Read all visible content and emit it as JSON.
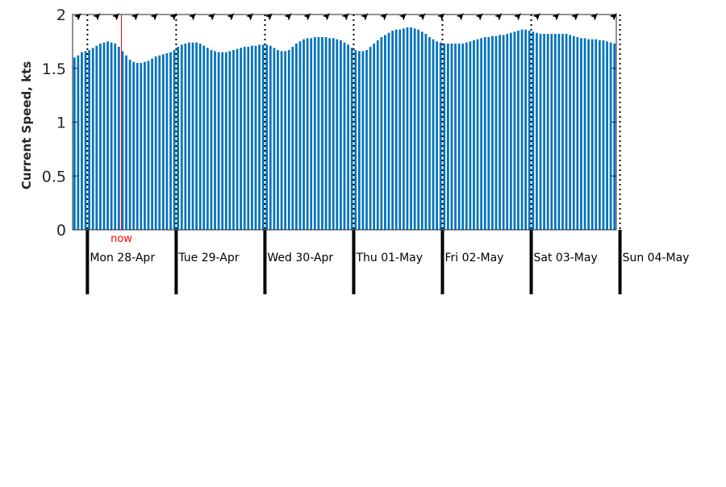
{
  "chart_data": {
    "type": "bar",
    "ylabel": "Current Speed, kts",
    "ylim": [
      0,
      2
    ],
    "yticks": [
      0,
      0.5,
      1,
      1.5,
      2
    ],
    "bar_color": "#0072bd",
    "now_color": "#ff0000",
    "now_label": "now",
    "x_start": "2025-04-27T20:00",
    "x_step_hours": 1,
    "day_labels": [
      "Mon 28-Apr",
      "Tue 29-Apr",
      "Wed 30-Apr",
      "Thu 01-May",
      "Fri 02-May",
      "Sat 03-May",
      "Sun 04-May"
    ],
    "values": [
      1.6,
      1.62,
      1.65,
      1.66,
      1.67,
      1.69,
      1.71,
      1.73,
      1.74,
      1.75,
      1.74,
      1.73,
      1.7,
      1.66,
      1.62,
      1.58,
      1.56,
      1.55,
      1.55,
      1.56,
      1.57,
      1.59,
      1.61,
      1.62,
      1.63,
      1.64,
      1.65,
      1.67,
      1.7,
      1.72,
      1.73,
      1.74,
      1.74,
      1.74,
      1.73,
      1.71,
      1.69,
      1.67,
      1.66,
      1.65,
      1.65,
      1.65,
      1.66,
      1.67,
      1.68,
      1.69,
      1.7,
      1.7,
      1.71,
      1.71,
      1.72,
      1.72,
      1.72,
      1.71,
      1.69,
      1.67,
      1.66,
      1.66,
      1.67,
      1.7,
      1.73,
      1.75,
      1.77,
      1.78,
      1.78,
      1.79,
      1.79,
      1.79,
      1.79,
      1.78,
      1.78,
      1.77,
      1.76,
      1.74,
      1.72,
      1.69,
      1.67,
      1.66,
      1.66,
      1.67,
      1.7,
      1.73,
      1.76,
      1.79,
      1.81,
      1.83,
      1.85,
      1.86,
      1.86,
      1.87,
      1.88,
      1.88,
      1.87,
      1.86,
      1.84,
      1.82,
      1.79,
      1.77,
      1.75,
      1.74,
      1.73,
      1.73,
      1.73,
      1.73,
      1.73,
      1.73,
      1.74,
      1.75,
      1.76,
      1.77,
      1.78,
      1.79,
      1.79,
      1.8,
      1.8,
      1.81,
      1.81,
      1.82,
      1.83,
      1.84,
      1.85,
      1.86,
      1.86,
      1.85,
      1.84,
      1.83,
      1.82,
      1.82,
      1.82,
      1.82,
      1.82,
      1.82,
      1.82,
      1.82,
      1.81,
      1.8,
      1.79,
      1.78,
      1.78,
      1.77,
      1.77,
      1.77,
      1.76,
      1.76,
      1.75,
      1.74,
      1.73
    ]
  }
}
